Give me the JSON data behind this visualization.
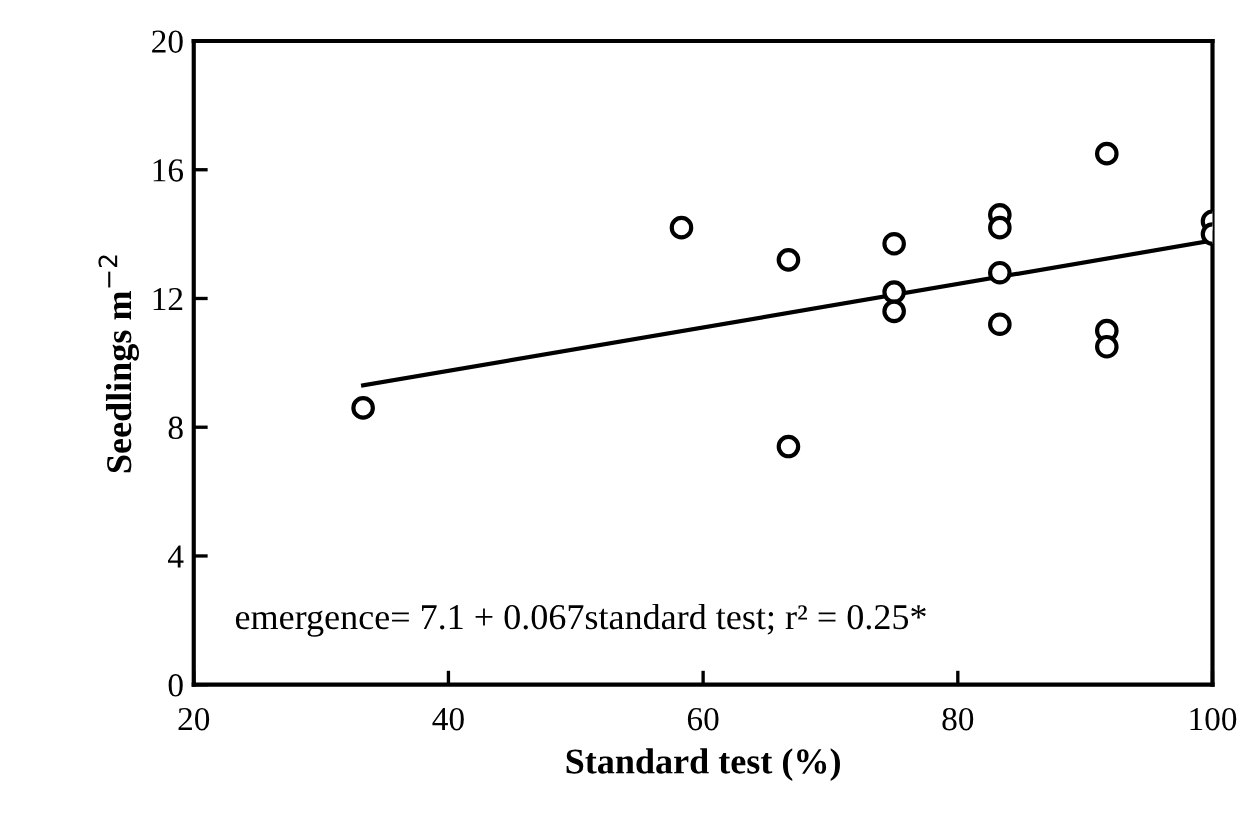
{
  "chart_data": {
    "type": "scatter",
    "xlabel": "Standard test (%)",
    "ylabel": "Seedlings m$^{−2}$",
    "xlim": [
      20,
      100
    ],
    "xticks": [
      20,
      40,
      60,
      80,
      100
    ],
    "ylim": [
      0,
      20
    ],
    "yticks": [
      0,
      4,
      8,
      12,
      16,
      20
    ],
    "grid": false,
    "legend": false,
    "marker": "circle",
    "series": [
      {
        "color": "#000000",
        "x": [
          33.3,
          58.3,
          66.7,
          66.7,
          75,
          75,
          75,
          83.3,
          83.3,
          83.3,
          83.3,
          91.7,
          91.7,
          91.7,
          100,
          100
        ],
        "values": [
          8.6,
          14.2,
          13.2,
          7.4,
          13.7,
          12.2,
          11.6,
          14.6,
          14.2,
          12.8,
          11.2,
          16.5,
          11.0,
          10.5,
          14.4,
          14.0
        ]
      },
      {
        "type": "line",
        "color": "#000000",
        "x": [
          33.3,
          100
        ],
        "values": [
          9.3,
          13.8
        ],
        "marker": "none",
        "line_style": "solid"
      }
    ],
    "annotations": [
      {
        "text": "emergence= 7.1 + 0.067standard test; r² = 0.25*"
      }
    ]
  }
}
